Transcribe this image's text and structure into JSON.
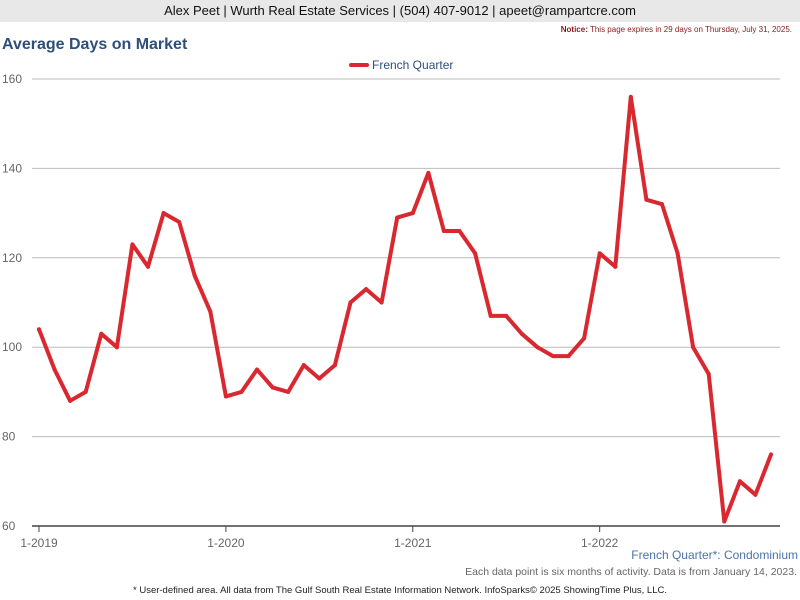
{
  "header": {
    "contact": "Alex Peet | Wurth Real Estate Services | (504) 407-9012 | apeet@rampartcre.com"
  },
  "notice": {
    "label": "Notice:",
    "text": "This page expires in 29 days on Thursday, July 31, 2025."
  },
  "colors": {
    "series": "#d9282f",
    "title": "#2e4f7c",
    "grid": "#bbbbbb"
  },
  "chart_data": {
    "type": "line",
    "title": "Average Days on Market",
    "subtitle": "French Quarter*: Condominium",
    "note": "Each data point is six months of activity. Data is from January 14, 2023.",
    "legend_position": "top-center",
    "grid": true,
    "ylim": [
      60,
      160
    ],
    "yticks": [
      60,
      80,
      100,
      120,
      140,
      160
    ],
    "xtick_labels": [
      "1-2019",
      "1-2020",
      "1-2021",
      "1-2022"
    ],
    "xtick_positions": [
      "2019-01",
      "2020-01",
      "2021-01",
      "2022-01"
    ],
    "x": [
      "2019-01",
      "2019-02",
      "2019-03",
      "2019-04",
      "2019-05",
      "2019-06",
      "2019-07",
      "2019-08",
      "2019-09",
      "2019-10",
      "2019-11",
      "2019-12",
      "2020-01",
      "2020-02",
      "2020-03",
      "2020-04",
      "2020-05",
      "2020-06",
      "2020-07",
      "2020-08",
      "2020-09",
      "2020-10",
      "2020-11",
      "2020-12",
      "2021-01",
      "2021-02",
      "2021-03",
      "2021-04",
      "2021-05",
      "2021-06",
      "2021-07",
      "2021-08",
      "2021-09",
      "2021-10",
      "2021-11",
      "2021-12",
      "2022-01",
      "2022-02",
      "2022-03",
      "2022-04",
      "2022-05",
      "2022-06",
      "2022-07",
      "2022-08",
      "2022-09",
      "2022-10",
      "2022-11",
      "2022-12"
    ],
    "series": [
      {
        "name": "French Quarter",
        "values": [
          104,
          95,
          88,
          90,
          103,
          100,
          123,
          118,
          130,
          128,
          116,
          108,
          89,
          90,
          95,
          91,
          90,
          96,
          93,
          96,
          110,
          113,
          110,
          129,
          130,
          139,
          126,
          126,
          121,
          107,
          107,
          103,
          100,
          98,
          98,
          102,
          121,
          118,
          156,
          133,
          132,
          121,
          100,
          94,
          61,
          70,
          67,
          76
        ]
      }
    ]
  },
  "footer": {
    "text": "* User-defined area. All data from The Gulf South Real Estate Information Network. InfoSparks© 2025 ShowingTime Plus, LLC."
  }
}
